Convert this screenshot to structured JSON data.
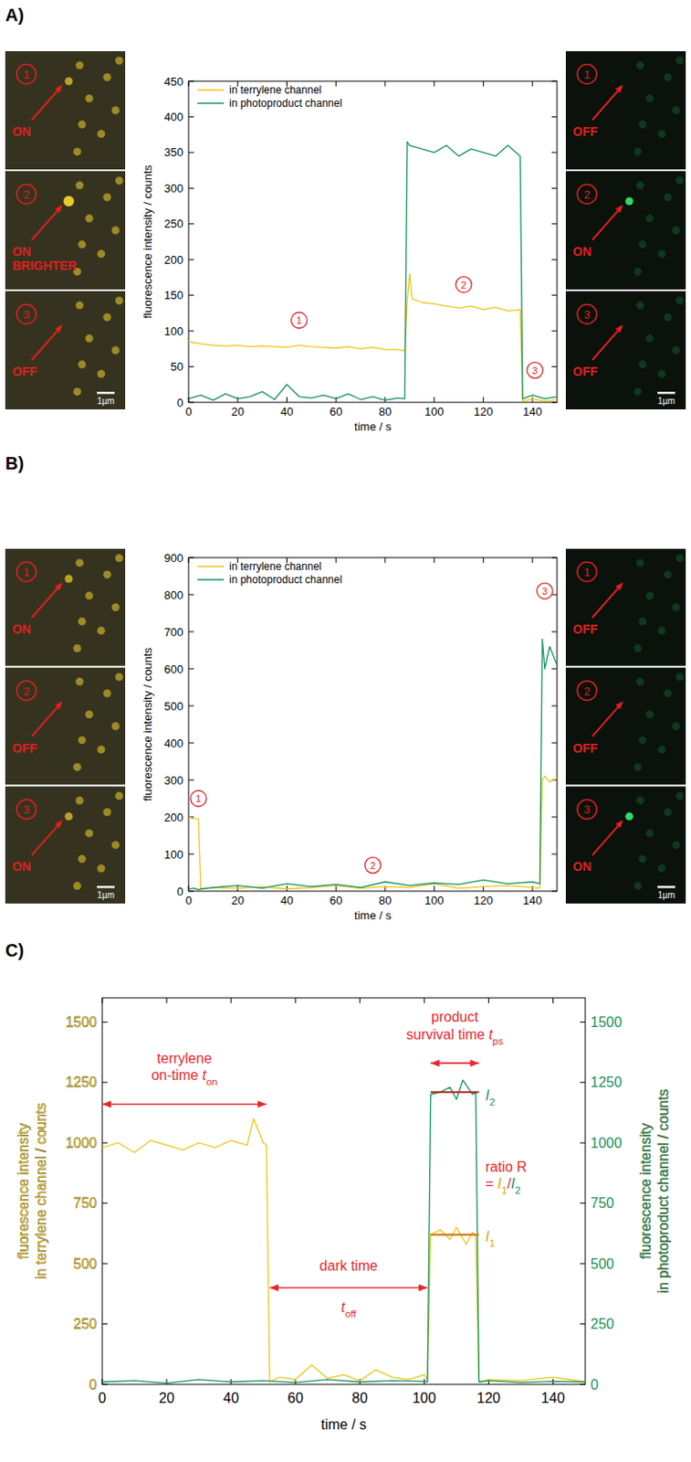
{
  "panel_labels": [
    "A)",
    "B)",
    "C)"
  ],
  "image_strips": [
    {
      "panel": 0,
      "side": "left",
      "channel": "terrylene",
      "color": "#f2d22e",
      "frames": [
        {
          "number": "1",
          "state": "ON"
        },
        {
          "number": "2",
          "state": "ON BRIGHTER"
        },
        {
          "number": "3",
          "state": "OFF"
        }
      ],
      "scale_bar": "1µm"
    },
    {
      "panel": 0,
      "side": "right",
      "channel": "photoproduct",
      "color": "#2ee86a",
      "frames": [
        {
          "number": "1",
          "state": "OFF"
        },
        {
          "number": "2",
          "state": "ON"
        },
        {
          "number": "3",
          "state": "OFF"
        }
      ],
      "scale_bar": "1µm"
    },
    {
      "panel": 1,
      "side": "left",
      "channel": "terrylene",
      "color": "#f2d22e",
      "frames": [
        {
          "number": "1",
          "state": "ON"
        },
        {
          "number": "2",
          "state": "OFF"
        },
        {
          "number": "3",
          "state": "ON"
        }
      ],
      "scale_bar": "1µm"
    },
    {
      "panel": 1,
      "side": "right",
      "channel": "photoproduct",
      "color": "#2ee86a",
      "frames": [
        {
          "number": "1",
          "state": "OFF"
        },
        {
          "number": "2",
          "state": "OFF"
        },
        {
          "number": "3",
          "state": "ON"
        }
      ],
      "scale_bar": "1µm"
    }
  ],
  "chart_data": [
    {
      "type": "line",
      "xlabel": "time / s",
      "ylabel": "fluorescence intensity / counts",
      "xlim": [
        0,
        150
      ],
      "xticks": [
        0,
        20,
        40,
        60,
        80,
        100,
        120,
        140
      ],
      "ylim": [
        0,
        450
      ],
      "yticks": [
        0,
        50,
        100,
        150,
        200,
        250,
        300,
        350,
        400,
        450
      ],
      "grid": false,
      "legend": "upper left",
      "series": [
        {
          "name": "in terrylene channel",
          "color": "#f0c419",
          "x": [
            0,
            5,
            10,
            15,
            20,
            25,
            30,
            35,
            40,
            45,
            50,
            55,
            60,
            65,
            70,
            75,
            80,
            85,
            88,
            89,
            90,
            91,
            95,
            100,
            105,
            110,
            115,
            120,
            125,
            130,
            135,
            136,
            140,
            145,
            150
          ],
          "values": [
            85,
            82,
            80,
            79,
            80,
            78,
            79,
            78,
            77,
            80,
            78,
            77,
            76,
            78,
            75,
            77,
            74,
            74,
            72,
            140,
            180,
            145,
            140,
            138,
            135,
            132,
            135,
            130,
            133,
            128,
            130,
            2,
            4,
            2,
            3
          ]
        },
        {
          "name": "in photoproduct channel",
          "color": "#13925a",
          "x": [
            0,
            5,
            10,
            15,
            20,
            25,
            30,
            35,
            40,
            45,
            50,
            55,
            60,
            65,
            70,
            75,
            80,
            85,
            88,
            89,
            90,
            95,
            100,
            105,
            110,
            115,
            120,
            125,
            130,
            135,
            136,
            140,
            145,
            150
          ],
          "values": [
            5,
            10,
            3,
            12,
            5,
            8,
            15,
            4,
            25,
            8,
            6,
            10,
            5,
            12,
            4,
            8,
            3,
            6,
            5,
            365,
            360,
            355,
            350,
            360,
            345,
            355,
            350,
            345,
            360,
            345,
            5,
            10,
            5,
            8
          ]
        }
      ],
      "annotations": [
        {
          "type": "circled",
          "text": "1",
          "x": 45,
          "y": 115,
          "color": "#e02020"
        },
        {
          "type": "circled",
          "text": "2",
          "x": 112,
          "y": 165,
          "color": "#e02020"
        },
        {
          "type": "circled",
          "text": "3",
          "x": 141,
          "y": 45,
          "color": "#e02020"
        }
      ]
    },
    {
      "type": "line",
      "xlabel": "time / s",
      "ylabel": "fluorescence intensity / counts",
      "xlim": [
        0,
        150
      ],
      "xticks": [
        0,
        20,
        40,
        60,
        80,
        100,
        120,
        140
      ],
      "ylim": [
        0,
        900
      ],
      "yticks": [
        0,
        100,
        200,
        300,
        400,
        500,
        600,
        700,
        800,
        900
      ],
      "grid": false,
      "legend": "upper left",
      "series": [
        {
          "name": "in terrylene channel",
          "color": "#f0c419",
          "x": [
            0,
            2,
            4,
            5,
            10,
            20,
            30,
            40,
            50,
            60,
            70,
            80,
            90,
            100,
            110,
            120,
            130,
            140,
            143,
            144,
            145,
            147,
            150
          ],
          "values": [
            200,
            195,
            195,
            5,
            10,
            8,
            12,
            6,
            10,
            15,
            8,
            12,
            10,
            20,
            8,
            12,
            15,
            10,
            8,
            300,
            310,
            295,
            305
          ]
        },
        {
          "name": "in photoproduct channel",
          "color": "#13925a",
          "x": [
            0,
            2,
            4,
            5,
            10,
            20,
            30,
            40,
            50,
            60,
            70,
            80,
            90,
            100,
            110,
            120,
            130,
            140,
            143,
            144,
            145,
            147,
            150
          ],
          "values": [
            5,
            8,
            4,
            6,
            10,
            15,
            8,
            20,
            12,
            18,
            10,
            25,
            15,
            22,
            18,
            30,
            20,
            25,
            20,
            680,
            600,
            660,
            610
          ]
        }
      ],
      "annotations": [
        {
          "type": "circled",
          "text": "1",
          "x": 4,
          "y": 250,
          "color": "#e02020"
        },
        {
          "type": "circled",
          "text": "2",
          "x": 75,
          "y": 70,
          "color": "#e02020"
        },
        {
          "type": "circled",
          "text": "3",
          "x": 145,
          "y": 810,
          "color": "#e02020"
        }
      ]
    },
    {
      "type": "line",
      "xlabel": "time / s",
      "ylabel": [
        "fluorescence intensity",
        "in terrylene channel / counts"
      ],
      "y2label": [
        "fluorescence intensity",
        "in photoproduct channel / counts"
      ],
      "xlim": [
        0,
        150
      ],
      "xticks": [
        0,
        20,
        40,
        60,
        80,
        100,
        120,
        140
      ],
      "ylim": [
        0,
        1600
      ],
      "yticks": [
        0,
        250,
        500,
        750,
        1000,
        1250,
        1500
      ],
      "y2lim": [
        0,
        1600
      ],
      "y2ticks": [
        0,
        250,
        500,
        750,
        1000,
        1250,
        1500
      ],
      "grid": false,
      "series": [
        {
          "color": "#f0c419",
          "x": [
            0,
            5,
            10,
            15,
            20,
            25,
            30,
            35,
            40,
            45,
            47,
            50,
            51,
            52,
            55,
            60,
            65,
            70,
            75,
            80,
            85,
            90,
            95,
            100,
            101,
            102,
            105,
            108,
            110,
            113,
            115,
            116,
            117,
            120,
            130,
            140,
            150
          ],
          "values": [
            980,
            1000,
            960,
            1010,
            990,
            970,
            1000,
            980,
            1010,
            990,
            1100,
            1000,
            990,
            10,
            30,
            20,
            80,
            25,
            40,
            15,
            60,
            30,
            20,
            40,
            20,
            620,
            640,
            600,
            650,
            580,
            630,
            610,
            10,
            20,
            15,
            30,
            10
          ]
        },
        {
          "color": "#13925a",
          "axis": "y2",
          "x": [
            0,
            10,
            20,
            30,
            40,
            50,
            60,
            70,
            80,
            90,
            100,
            101,
            102,
            105,
            108,
            110,
            112,
            115,
            116,
            117,
            120,
            130,
            140,
            150
          ],
          "values": [
            10,
            15,
            5,
            20,
            10,
            15,
            8,
            20,
            10,
            15,
            12,
            10,
            1200,
            1210,
            1230,
            1180,
            1260,
            1200,
            1210,
            10,
            15,
            8,
            12,
            10
          ]
        }
      ],
      "annotations": [
        {
          "type": "arrow",
          "x": [
            0,
            51
          ],
          "y": 1160,
          "color": "#e8262d",
          "labels": [
            {
              "x": 25.5,
              "y": 1330,
              "lines": [
                [
                  {
                    "text": "terrylene"
                  }
                ],
                [
                  {
                    "text": "on-time "
                  },
                  {
                    "text": "t",
                    "format": "italic"
                  },
                  {
                    "text": "on",
                    "format": "sub"
                  }
                ]
              ]
            }
          ]
        },
        {
          "type": "arrow",
          "x": [
            52,
            101
          ],
          "y": 400,
          "color": "#e8262d",
          "labels": [
            {
              "x": 76.5,
              "y": 470,
              "lines": [
                [
                  {
                    "text": "dark time"
                  }
                ]
              ]
            },
            {
              "x": 76.5,
              "y": 300,
              "lines": [
                [
                  {
                    "text": "t",
                    "format": "italic"
                  },
                  {
                    "text": "off",
                    "format": "sub"
                  }
                ]
              ]
            }
          ]
        },
        {
          "type": "arrow",
          "x": [
            102,
            117
          ],
          "y": 1330,
          "color": "#e8262d",
          "labels": [
            {
              "x": 109.5,
              "y": 1500,
              "lines": [
                [
                  {
                    "text": "product"
                  }
                ],
                [
                  {
                    "text": "survival time "
                  },
                  {
                    "text": "t",
                    "format": "italic"
                  },
                  {
                    "text": "ps",
                    "format": "sub"
                  }
                ]
              ]
            }
          ]
        },
        {
          "type": "level",
          "x": [
            102,
            117
          ],
          "y": 1210,
          "axis": "y2",
          "color": "#b0201a",
          "labels": [
            {
              "x": 119,
              "y": 1175,
              "lines": [
                [
                  {
                    "text": "I",
                    "format": "italic",
                    "color": "#13925a"
                  },
                  {
                    "text": "2",
                    "format": "sub",
                    "color": "#13925a"
                  }
                ]
              ]
            }
          ]
        },
        {
          "type": "level",
          "x": [
            102,
            117
          ],
          "y": 620,
          "color": "#d07a10",
          "labels": [
            {
              "x": 119,
              "y": 590,
              "lines": [
                [
                  {
                    "text": "I",
                    "format": "italic",
                    "color": "#d9a300"
                  },
                  {
                    "text": "1",
                    "format": "sub",
                    "color": "#d9a300"
                  }
                ]
              ]
            }
          ]
        },
        {
          "type": "text",
          "color": "#e8262d",
          "labels": [
            {
              "x": 119,
              "y": 880,
              "lines": [
                [
                  {
                    "text": "ratio R"
                  }
                ],
                [
                  {
                    "text": "= "
                  },
                  {
                    "text": "I",
                    "format": "italic",
                    "color": "#d9a300"
                  },
                  {
                    "text": "1",
                    "format": "sub",
                    "color": "#d9a300"
                  },
                  {
                    "text": "/"
                  },
                  {
                    "text": "I",
                    "format": "italic",
                    "color": "#13925a"
                  },
                  {
                    "text": "2",
                    "format": "sub",
                    "color": "#13925a"
                  }
                ]
              ]
            }
          ]
        }
      ]
    }
  ]
}
